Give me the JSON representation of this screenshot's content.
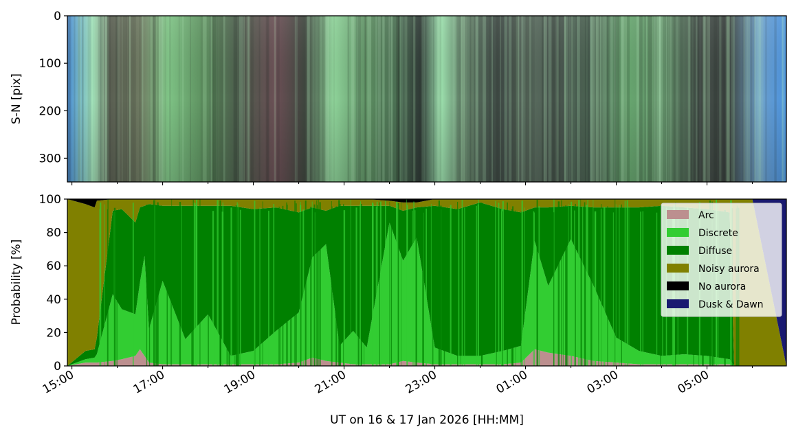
{
  "chart_data": [
    {
      "type": "heatmap",
      "title": "",
      "xlabel": "",
      "ylabel": "S-N [pix]",
      "yticks": [
        "0",
        "100",
        "200",
        "300"
      ],
      "ylim": [
        350,
        0
      ],
      "color_bands": [
        {
          "t": 0,
          "color": "#4b8fd6"
        },
        {
          "t": 0.035,
          "color": "#9fe0b8"
        },
        {
          "t": 0.06,
          "color": "#5a5f52"
        },
        {
          "t": 0.1,
          "color": "#6f7a62"
        },
        {
          "t": 0.14,
          "color": "#7fc486"
        },
        {
          "t": 0.19,
          "color": "#5c8f5e"
        },
        {
          "t": 0.24,
          "color": "#4b5a4b"
        },
        {
          "t": 0.29,
          "color": "#6b4f55"
        },
        {
          "t": 0.33,
          "color": "#3e463e"
        },
        {
          "t": 0.37,
          "color": "#8fd49a"
        },
        {
          "t": 0.42,
          "color": "#5a8a5f"
        },
        {
          "t": 0.46,
          "color": "#4a6d52"
        },
        {
          "t": 0.49,
          "color": "#2f3a36"
        },
        {
          "t": 0.52,
          "color": "#9ce0ad"
        },
        {
          "t": 0.55,
          "color": "#5d7a63"
        },
        {
          "t": 0.6,
          "color": "#3f4a45"
        },
        {
          "t": 0.64,
          "color": "#5b6e60"
        },
        {
          "t": 0.69,
          "color": "#46544c"
        },
        {
          "t": 0.74,
          "color": "#4e6a55"
        },
        {
          "t": 0.78,
          "color": "#67a66f"
        },
        {
          "t": 0.83,
          "color": "#5f8c66"
        },
        {
          "t": 0.88,
          "color": "#444e49"
        },
        {
          "t": 0.92,
          "color": "#3a423e"
        },
        {
          "t": 0.96,
          "color": "#6fa0c8"
        },
        {
          "t": 1.0,
          "color": "#4a92e0"
        }
      ]
    },
    {
      "type": "area",
      "title": "",
      "xlabel": "UT on 16 & 17 Jan 2026 [HH:MM]",
      "ylabel": "Probability [%]",
      "ylim": [
        0,
        100
      ],
      "yticks": [
        "0",
        "20",
        "40",
        "60",
        "80",
        "100"
      ],
      "xlim_hours": [
        14.9,
        30.75
      ],
      "xticks": [
        {
          "h": 15,
          "label": "15:00"
        },
        {
          "h": 17,
          "label": "17:00"
        },
        {
          "h": 19,
          "label": "19:00"
        },
        {
          "h": 21,
          "label": "21:00"
        },
        {
          "h": 23,
          "label": "23:00"
        },
        {
          "h": 25,
          "label": "01:00"
        },
        {
          "h": 27,
          "label": "03:00"
        },
        {
          "h": 29,
          "label": "05:00"
        }
      ],
      "legend_position": "top-right",
      "series_order": [
        "Arc",
        "Discrete",
        "Diffuse",
        "Noisy aurora",
        "No aurora",
        "Dusk & Dawn"
      ],
      "series": [
        {
          "name": "Arc",
          "color": "#bc8f8f"
        },
        {
          "name": "Discrete",
          "color": "#32cd32"
        },
        {
          "name": "Diffuse",
          "color": "#008000"
        },
        {
          "name": "Noisy aurora",
          "color": "#808000"
        },
        {
          "name": "No aurora",
          "color": "#000000"
        },
        {
          "name": "Dusk & Dawn",
          "color": "#191970"
        }
      ],
      "x_hours": [
        14.9,
        15.3,
        15.5,
        15.55,
        15.9,
        16.1,
        16.4,
        16.5,
        16.6,
        16.7,
        17.0,
        17.5,
        18.0,
        18.5,
        19.0,
        19.5,
        20.0,
        20.3,
        20.6,
        20.9,
        21.2,
        21.5,
        22.0,
        22.3,
        22.6,
        23.0,
        23.5,
        24.0,
        24.5,
        24.9,
        25.2,
        25.5,
        26.0,
        26.5,
        27.0,
        27.5,
        28.0,
        28.5,
        29.0,
        29.5,
        29.6,
        30.0,
        30.3,
        30.75
      ],
      "stack_values": [
        {
          "name": "Arc",
          "values": [
            0,
            2,
            2,
            2,
            3,
            4,
            6,
            10,
            6,
            2,
            1,
            1,
            1,
            1,
            1,
            1,
            2,
            5,
            3,
            2,
            1,
            1,
            1,
            3,
            2,
            1,
            1,
            1,
            1,
            2,
            10,
            8,
            6,
            3,
            2,
            1,
            1,
            1,
            1,
            1,
            0,
            0,
            0,
            0
          ]
        },
        {
          "name": "Discrete",
          "values": [
            0,
            2,
            3,
            5,
            40,
            30,
            25,
            40,
            60,
            20,
            50,
            15,
            30,
            5,
            8,
            20,
            30,
            60,
            70,
            10,
            20,
            10,
            85,
            60,
            75,
            10,
            5,
            5,
            8,
            10,
            65,
            40,
            70,
            45,
            15,
            8,
            5,
            6,
            5,
            3,
            0,
            0,
            0,
            0
          ]
        },
        {
          "name": "Diffuse",
          "values": [
            0,
            5,
            5,
            10,
            50,
            60,
            55,
            45,
            30,
            75,
            45,
            80,
            65,
            90,
            85,
            74,
            60,
            30,
            20,
            84,
            75,
            85,
            10,
            30,
            18,
            85,
            88,
            92,
            85,
            80,
            20,
            47,
            20,
            47,
            78,
            86,
            90,
            88,
            88,
            88,
            0,
            0,
            0,
            0
          ]
        },
        {
          "name": "Noisy aurora",
          "values": [
            100,
            88,
            85,
            82,
            7,
            6,
            14,
            5,
            4,
            3,
            4,
            4,
            4,
            4,
            6,
            5,
            8,
            5,
            7,
            4,
            4,
            4,
            3,
            5,
            3,
            4,
            6,
            2,
            6,
            8,
            5,
            5,
            4,
            5,
            5,
            5,
            4,
            5,
            6,
            8,
            100,
            100,
            60,
            0
          ]
        },
        {
          "name": "No aurora",
          "values": [
            0,
            3,
            5,
            1,
            0,
            0,
            0,
            0,
            0,
            0,
            0,
            0,
            0,
            0,
            0,
            0,
            0,
            0,
            0,
            0,
            0,
            0,
            1,
            2,
            2,
            0,
            0,
            0,
            0,
            0,
            0,
            0,
            0,
            0,
            0,
            0,
            0,
            0,
            0,
            0,
            0,
            0,
            0,
            0
          ]
        },
        {
          "name": "Dusk & Dawn",
          "values": [
            0,
            0,
            0,
            0,
            0,
            0,
            0,
            0,
            0,
            0,
            0,
            0,
            0,
            0,
            0,
            0,
            0,
            0,
            0,
            0,
            0,
            0,
            0,
            0,
            0,
            0,
            0,
            0,
            0,
            0,
            0,
            0,
            0,
            0,
            0,
            0,
            0,
            0,
            0,
            0,
            0,
            0,
            40,
            100
          ]
        }
      ]
    }
  ]
}
